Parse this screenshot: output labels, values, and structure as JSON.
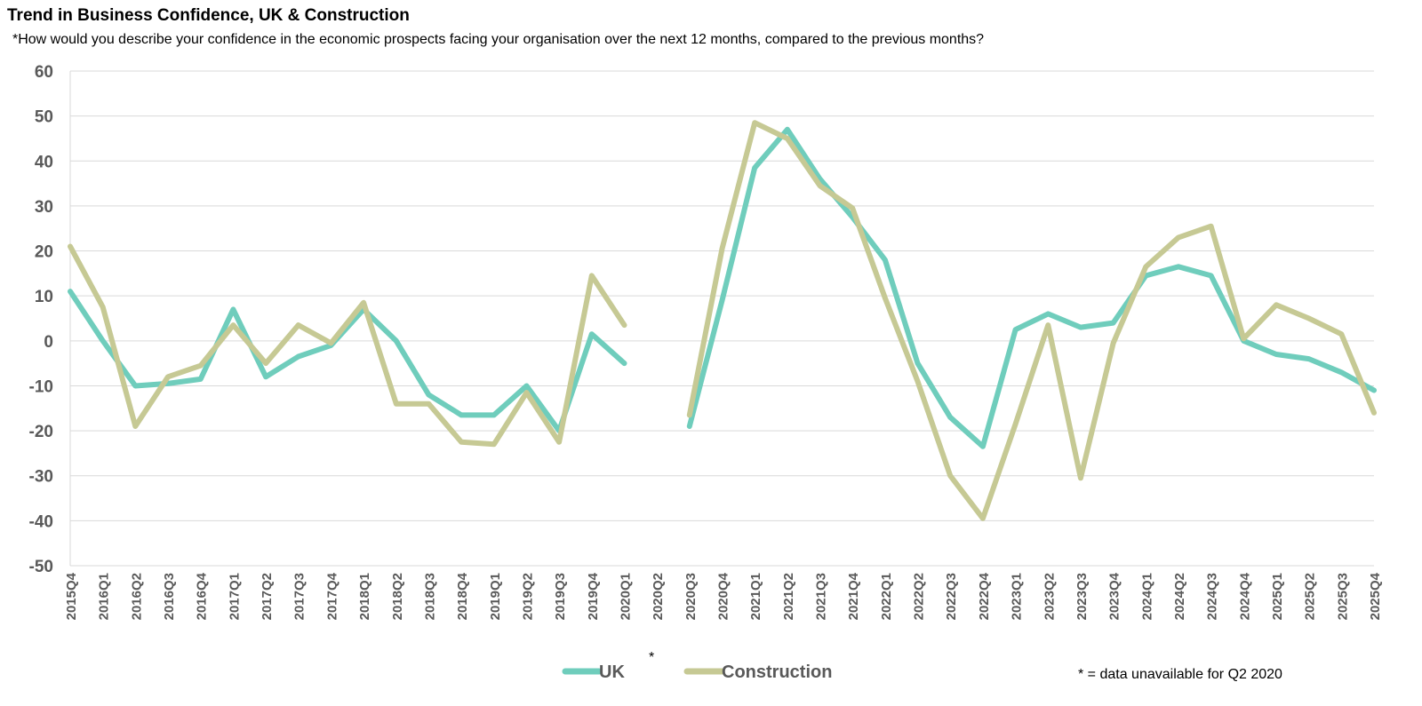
{
  "chart_data": {
    "type": "line",
    "title": "Trend in Business Confidence, UK & Construction",
    "subtitle": "*How would you describe your confidence in the economic prospects facing your organisation over the next 12 months, compared to the previous months?",
    "categories": [
      "2015Q4",
      "2016Q1",
      "2016Q2",
      "2016Q3",
      "2016Q4",
      "2017Q1",
      "2017Q2",
      "2017Q3",
      "2017Q4",
      "2018Q1",
      "2018Q2",
      "2018Q3",
      "2018Q4",
      "2019Q1",
      "2019Q2",
      "2019Q3",
      "2019Q4",
      "2020Q1",
      "2020Q2",
      "2020Q3",
      "2020Q4",
      "2021Q1",
      "2021Q2",
      "2021Q3",
      "2021Q4",
      "2022Q1",
      "2022Q2",
      "2022Q3",
      "2022Q4",
      "2023Q1",
      "2023Q2",
      "2023Q3",
      "2023Q4",
      "2024Q1",
      "2024Q2",
      "2024Q3",
      "2024Q4",
      "2025Q1",
      "2025Q2",
      "2025Q3",
      "2025Q4"
    ],
    "category_markers": {
      "2020Q2": "*"
    },
    "series": [
      {
        "name": "UK",
        "color": "#6fcdbc",
        "values": [
          11,
          0,
          -10,
          -9.5,
          -8.5,
          7,
          -8,
          -3.5,
          -1,
          7,
          0,
          -12,
          -16.5,
          -16.5,
          -10,
          -20,
          1.5,
          -5,
          null,
          -19,
          9,
          38.5,
          47,
          36,
          27.5,
          18,
          -5,
          -17,
          -23.5,
          2.5,
          6,
          3,
          4,
          14.5,
          16.5,
          14.5,
          0,
          -3,
          -4,
          -7,
          -11
        ]
      },
      {
        "name": "Construction",
        "color": "#c6c994",
        "values": [
          21,
          7.5,
          -19,
          -8,
          -5.5,
          3.5,
          -5,
          3.5,
          -0.5,
          8.5,
          -14,
          -14,
          -22.5,
          -23,
          -11.5,
          -22.5,
          14.5,
          3.5,
          null,
          -16.5,
          20.5,
          48.5,
          45,
          34.5,
          29.5,
          9.5,
          -9,
          -30,
          -39.5,
          -18.5,
          3.5,
          -30.5,
          -0.5,
          16.5,
          23,
          25.5,
          0.5,
          8,
          5,
          1.5,
          -16
        ]
      }
    ],
    "ylim": [
      -50,
      60
    ],
    "yticks": [
      "60",
      "50",
      "40",
      "30",
      "20",
      "10",
      "0",
      "-10",
      "-20",
      "-30",
      "-40",
      "-50"
    ],
    "ytick_values": [
      60,
      50,
      40,
      30,
      20,
      10,
      0,
      -10,
      -20,
      -30,
      -40,
      -50
    ],
    "xlabel": "",
    "ylabel": "",
    "grid": true,
    "legend_position": "bottom",
    "footnote": "* = data unavailable for Q2 2020"
  }
}
